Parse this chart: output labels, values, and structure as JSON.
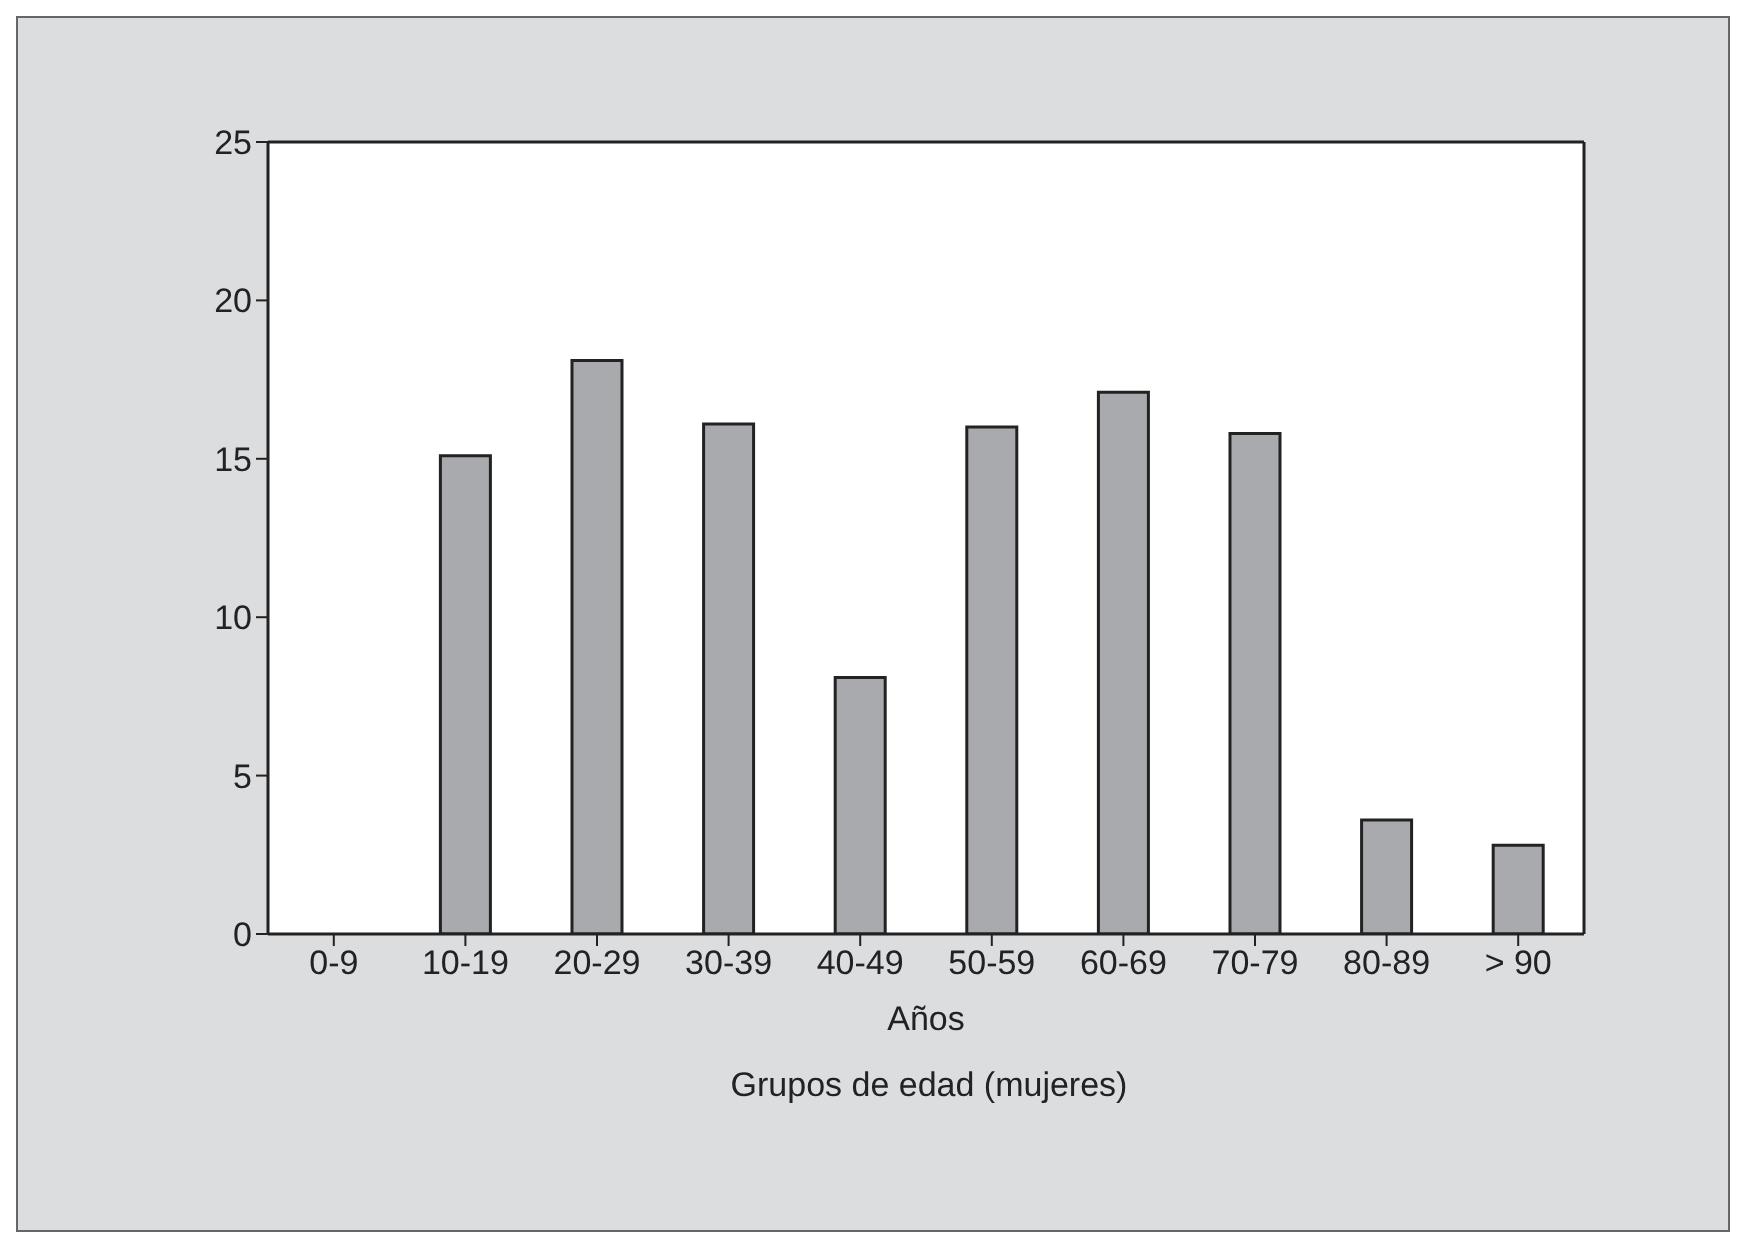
{
  "chart_data": {
    "type": "bar",
    "xlabel": "Años",
    "annotations": [
      "Grupos de edad (mujeres)"
    ],
    "categories": [
      "0-9",
      "10-19",
      "20-29",
      "30-39",
      "40-49",
      "50-59",
      "60-69",
      "70-79",
      "80-89",
      "> 90"
    ],
    "values": [
      0,
      15.1,
      18.1,
      16.1,
      8.1,
      16.0,
      17.1,
      15.8,
      3.6,
      2.8
    ],
    "color": "#a9aaad",
    "ylim": [
      0,
      25
    ],
    "yticks": [
      0,
      5,
      10,
      15,
      20,
      25
    ],
    "grid": false,
    "legend": false
  }
}
